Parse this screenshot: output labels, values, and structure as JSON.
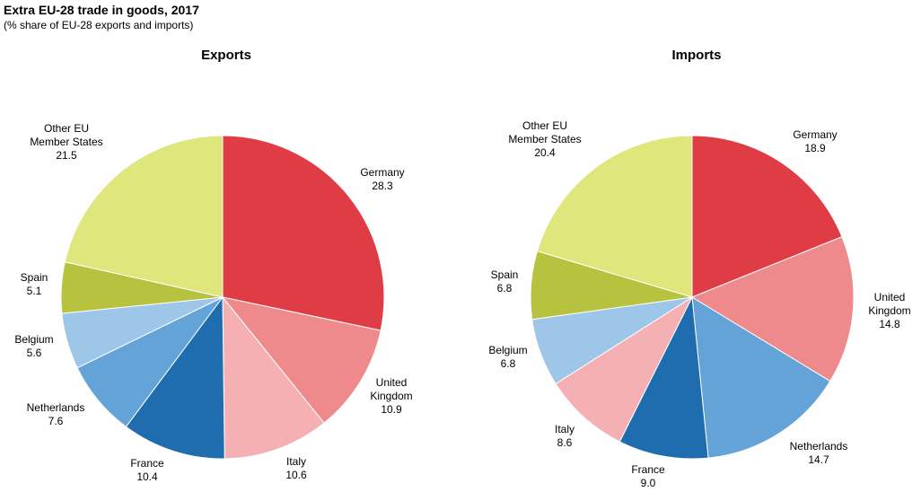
{
  "figure": {
    "title": "Extra EU-28 trade in goods, 2017",
    "subtitle": "(% share of EU-28 exports and imports)"
  },
  "chart_data": [
    {
      "type": "pie",
      "title": "Exports",
      "start": "12 o'clock",
      "direction": "clockwise",
      "slices": [
        {
          "label": [
            "Germany"
          ],
          "value": 28.3,
          "display": "28.3",
          "color": "#e03c45"
        },
        {
          "label": [
            "United",
            "Kingdom"
          ],
          "value": 10.9,
          "display": "10.9",
          "color": "#ef8a8c"
        },
        {
          "label": [
            "Italy"
          ],
          "value": 10.6,
          "display": "10.6",
          "color": "#f5b0b3"
        },
        {
          "label": [
            "France"
          ],
          "value": 10.4,
          "display": "10.4",
          "color": "#1f6dae"
        },
        {
          "label": [
            "Netherlands"
          ],
          "value": 7.6,
          "display": "7.6",
          "color": "#64a3d8"
        },
        {
          "label": [
            "Belgium"
          ],
          "value": 5.6,
          "display": "5.6",
          "color": "#9ec6e8"
        },
        {
          "label": [
            "Spain"
          ],
          "value": 5.1,
          "display": "5.1",
          "color": "#b7c23f"
        },
        {
          "label": [
            "Other EU",
            "Member  States"
          ],
          "value": 21.5,
          "display": "21.5",
          "color": "#dfe67c"
        }
      ]
    },
    {
      "type": "pie",
      "title": "Imports",
      "start": "12 o'clock",
      "direction": "clockwise",
      "slices": [
        {
          "label": [
            "Germany"
          ],
          "value": 18.9,
          "display": "18.9",
          "color": "#e03c45"
        },
        {
          "label": [
            "United",
            "Kingdom"
          ],
          "value": 14.8,
          "display": "14.8",
          "color": "#ef8a8c"
        },
        {
          "label": [
            "Netherlands"
          ],
          "value": 14.7,
          "display": "14.7",
          "color": "#64a3d8"
        },
        {
          "label": [
            "France"
          ],
          "value": 9.0,
          "display": "9.0",
          "color": "#1f6dae"
        },
        {
          "label": [
            "Italy"
          ],
          "value": 8.6,
          "display": "8.6",
          "color": "#f5b0b3"
        },
        {
          "label": [
            "Belgium"
          ],
          "value": 6.8,
          "display": "6.8",
          "color": "#9ec6e8"
        },
        {
          "label": [
            "Spain"
          ],
          "value": 6.8,
          "display": "6.8",
          "color": "#b7c23f"
        },
        {
          "label": [
            "Other EU",
            "Member  States"
          ],
          "value": 20.4,
          "display": "20.4",
          "color": "#dfe67c"
        }
      ]
    }
  ]
}
